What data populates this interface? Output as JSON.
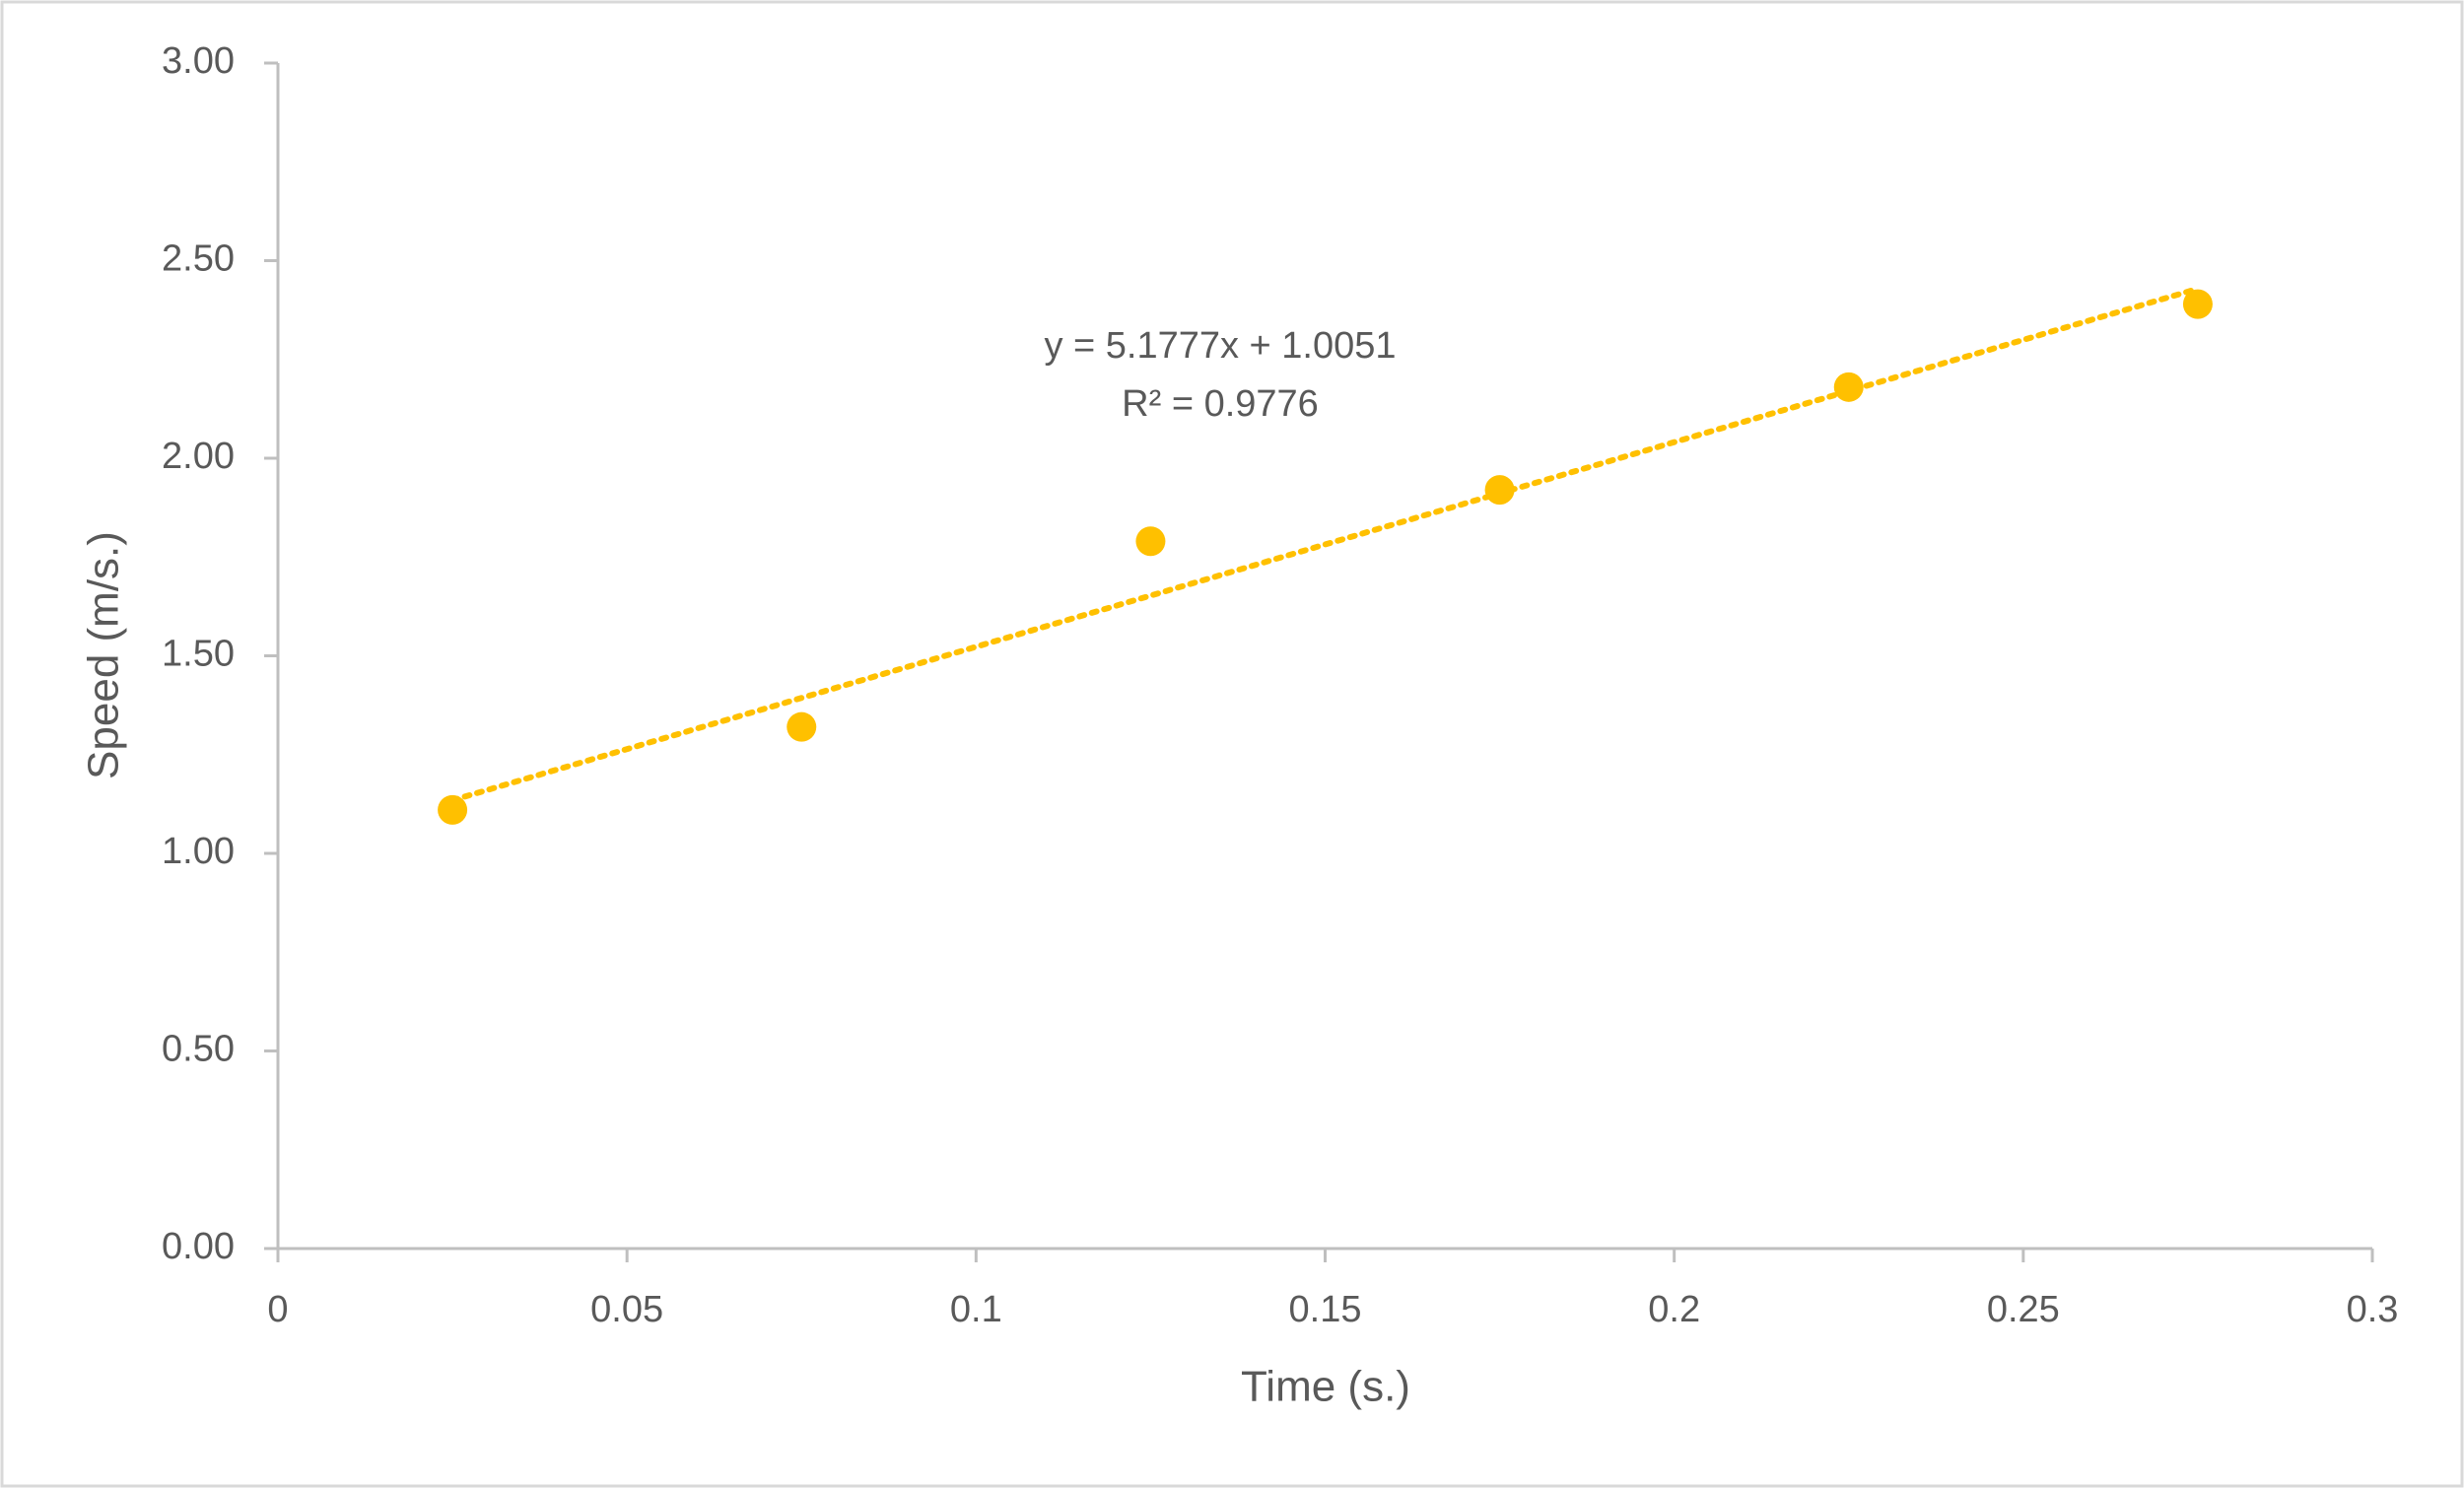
{
  "chart_data": {
    "type": "scatter",
    "x_label": "Time (s.)",
    "y_label": "Speed (m/s.)",
    "x": [
      0.025,
      0.075,
      0.125,
      0.175,
      0.225,
      0.275
    ],
    "series": [
      {
        "name": "Speed",
        "color": "#ffc000",
        "values": [
          1.11,
          1.32,
          1.79,
          1.92,
          2.18,
          2.39
        ]
      }
    ],
    "trendline": {
      "slope": 5.1777,
      "intercept": 1.0051,
      "r_squared": 0.9776,
      "equation_label": "y = 5.1777x + 1.0051",
      "r_squared_label": "R² = 0.9776"
    },
    "xlim": [
      0,
      0.3
    ],
    "xticks": [
      0,
      0.05,
      0.1,
      0.15,
      0.2,
      0.25,
      0.3
    ],
    "ylim": [
      0,
      3
    ],
    "yticks": [
      {
        "value": 0,
        "label": "0.00"
      },
      {
        "value": 0.5,
        "label": "0.50"
      },
      {
        "value": 1,
        "label": "1.00"
      },
      {
        "value": 1.5,
        "label": "1.50"
      },
      {
        "value": 2,
        "label": "2.00"
      },
      {
        "value": 2.5,
        "label": "2.50"
      },
      {
        "value": 3,
        "label": "3.00"
      }
    ],
    "grid": false
  }
}
